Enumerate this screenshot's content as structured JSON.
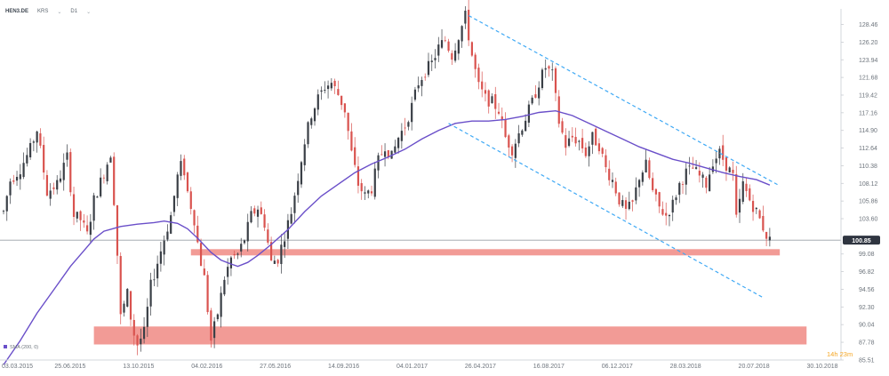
{
  "toolbar": {
    "symbol": "HEN3.DE",
    "mode": "KRS",
    "interval": "D1",
    "chevron": "⌄"
  },
  "indicator_label": "SMA (200, 0)",
  "timer": "14h 23m",
  "colors": {
    "candle_up": "#3a3f46",
    "candle_down": "#d9534f",
    "sma": "#6a4fc9",
    "channel": "#3fa9f5",
    "zone": "#f08a84",
    "last_price_badge": "#2f3540",
    "timer": "#f5a623"
  },
  "chart_data": {
    "type": "candlestick",
    "title": "",
    "xlabel": "",
    "ylabel": "",
    "ylim": [
      85.51,
      130.0
    ],
    "y_ticks": [
      128.46,
      126.2,
      123.94,
      121.68,
      119.42,
      117.16,
      114.9,
      112.64,
      110.38,
      108.12,
      105.86,
      103.6,
      99.08,
      96.82,
      94.56,
      92.3,
      90.04,
      87.78,
      85.51
    ],
    "x_ticks": [
      "03.03.2015",
      "25.06.2015",
      "13.10.2015",
      "04.02.2016",
      "27.05.2016",
      "14.09.2016",
      "04.01.2017",
      "26.04.2017",
      "16.08.2017",
      "06.12.2017",
      "28.03.2018",
      "20.07.2018",
      "30.10.2018"
    ],
    "last_price": 100.85,
    "price_path": [
      [
        0,
        104.5
      ],
      [
        2,
        108.5
      ],
      [
        5,
        110.0
      ],
      [
        8,
        112.5
      ],
      [
        10,
        115.0
      ],
      [
        13,
        107.0
      ],
      [
        16,
        108.0
      ],
      [
        19,
        111.5
      ],
      [
        21,
        104.0
      ],
      [
        23,
        103.5
      ],
      [
        25,
        101.5
      ],
      [
        27,
        106.0
      ],
      [
        30,
        109.5
      ],
      [
        32,
        112.0
      ],
      [
        33.5,
        103.0
      ],
      [
        35,
        91.0
      ],
      [
        37,
        94.0
      ],
      [
        38.5,
        89.5
      ],
      [
        40,
        87.5
      ],
      [
        42,
        89.0
      ],
      [
        44,
        95.0
      ],
      [
        46,
        98.0
      ],
      [
        48,
        101.0
      ],
      [
        50,
        104.0
      ],
      [
        52,
        109.0
      ],
      [
        53.5,
        111.0
      ],
      [
        55,
        107.0
      ],
      [
        57,
        103.5
      ],
      [
        58.5,
        99.0
      ],
      [
        60,
        96.0
      ],
      [
        61,
        92.0
      ],
      [
        62,
        88.0
      ],
      [
        64,
        91.5
      ],
      [
        66,
        96.0
      ],
      [
        68,
        98.5
      ],
      [
        70,
        99.0
      ],
      [
        72,
        101.0
      ],
      [
        74,
        104.0
      ],
      [
        76,
        105.0
      ],
      [
        78,
        103.0
      ],
      [
        80,
        98.0
      ],
      [
        82,
        98.5
      ],
      [
        84,
        101.5
      ],
      [
        86,
        104.5
      ],
      [
        88,
        109.0
      ],
      [
        90,
        113.5
      ],
      [
        92,
        117.0
      ],
      [
        94,
        119.0
      ],
      [
        96,
        120.5
      ],
      [
        98,
        121.0
      ],
      [
        100,
        119.5
      ],
      [
        102,
        117.5
      ],
      [
        104,
        112.0
      ],
      [
        106,
        108.0
      ],
      [
        108,
        106.5
      ],
      [
        110,
        107.5
      ],
      [
        112,
        111.0
      ],
      [
        114,
        113.0
      ],
      [
        116,
        111.5
      ],
      [
        118,
        114.0
      ],
      [
        120,
        115.5
      ],
      [
        122,
        118.0
      ],
      [
        124,
        121.0
      ],
      [
        126,
        122.5
      ],
      [
        128,
        123.5
      ],
      [
        130,
        125.5
      ],
      [
        132,
        126.5
      ],
      [
        134,
        124.5
      ],
      [
        136,
        127.0
      ],
      [
        138,
        129.5
      ],
      [
        140,
        124.5
      ],
      [
        142,
        120.5
      ],
      [
        144,
        119.0
      ],
      [
        146,
        118.5
      ],
      [
        148,
        117.5
      ],
      [
        150,
        114.0
      ],
      [
        152,
        112.5
      ],
      [
        154,
        114.5
      ],
      [
        156,
        116.5
      ],
      [
        158,
        118.5
      ],
      [
        160,
        121.0
      ],
      [
        162,
        123.0
      ],
      [
        164,
        122.0
      ],
      [
        166,
        116.0
      ],
      [
        168,
        113.0
      ],
      [
        170,
        114.0
      ],
      [
        172,
        113.5
      ],
      [
        174,
        112.0
      ],
      [
        176,
        114.0
      ],
      [
        178,
        113.0
      ],
      [
        180,
        110.0
      ],
      [
        182,
        108.5
      ],
      [
        184,
        106.0
      ],
      [
        186,
        104.5
      ],
      [
        188,
        105.5
      ],
      [
        190,
        109.0
      ],
      [
        192,
        110.5
      ],
      [
        194,
        107.0
      ],
      [
        196,
        105.0
      ],
      [
        198,
        104.0
      ],
      [
        200,
        105.5
      ],
      [
        202,
        108.0
      ],
      [
        204,
        109.5
      ],
      [
        206,
        110.0
      ],
      [
        208,
        109.0
      ],
      [
        210,
        108.0
      ],
      [
        212,
        111.0
      ],
      [
        214,
        112.0
      ],
      [
        216,
        110.5
      ],
      [
        218,
        109.0
      ],
      [
        219,
        103.5
      ],
      [
        221,
        108.0
      ],
      [
        223,
        106.0
      ],
      [
        225,
        104.5
      ],
      [
        227,
        102.5
      ],
      [
        228,
        101.5
      ],
      [
        229,
        100.8
      ]
    ],
    "sma_200": [
      [
        0,
        84.9
      ],
      [
        5,
        88.0
      ],
      [
        10,
        91.5
      ],
      [
        15,
        94.5
      ],
      [
        20,
        97.5
      ],
      [
        25,
        100.0
      ],
      [
        27,
        101.0
      ],
      [
        30,
        102.0
      ],
      [
        35,
        102.6
      ],
      [
        40,
        102.9
      ],
      [
        45,
        103.1
      ],
      [
        48,
        103.3
      ],
      [
        52,
        103.0
      ],
      [
        55,
        102.3
      ],
      [
        58,
        101.1
      ],
      [
        62,
        99.3
      ],
      [
        65,
        98.3
      ],
      [
        68,
        97.8
      ],
      [
        70,
        97.5
      ],
      [
        73,
        98.0
      ],
      [
        76,
        98.9
      ],
      [
        80,
        100.3
      ],
      [
        85,
        102.2
      ],
      [
        90,
        104.5
      ],
      [
        95,
        106.5
      ],
      [
        100,
        108.0
      ],
      [
        105,
        109.5
      ],
      [
        110,
        110.6
      ],
      [
        115,
        111.5
      ],
      [
        120,
        112.5
      ],
      [
        125,
        113.8
      ],
      [
        130,
        114.9
      ],
      [
        135,
        115.8
      ],
      [
        140,
        116.1
      ],
      [
        145,
        116.1
      ],
      [
        150,
        116.3
      ],
      [
        155,
        116.7
      ],
      [
        160,
        117.2
      ],
      [
        165,
        117.4
      ],
      [
        170,
        116.8
      ],
      [
        175,
        115.8
      ],
      [
        180,
        114.8
      ],
      [
        185,
        113.8
      ],
      [
        190,
        112.8
      ],
      [
        195,
        112.0
      ],
      [
        200,
        111.2
      ],
      [
        205,
        110.7
      ],
      [
        210,
        110.1
      ],
      [
        215,
        109.5
      ],
      [
        220,
        109.0
      ],
      [
        225,
        108.6
      ],
      [
        229,
        107.9
      ]
    ],
    "channel_upper": [
      [
        139,
        129.6
      ],
      [
        232,
        107.8
      ]
    ],
    "channel_lower": [
      [
        133,
        115.8
      ],
      [
        227,
        93.5
      ]
    ],
    "zones": [
      {
        "y_from": 98.9,
        "y_to": 99.7,
        "x_from": 56,
        "x_to": 232
      },
      {
        "y_from": 87.5,
        "y_to": 89.8,
        "x_from": 27,
        "x_to": 240
      }
    ],
    "indicator": "SMA (200, 0)",
    "grid": false
  }
}
